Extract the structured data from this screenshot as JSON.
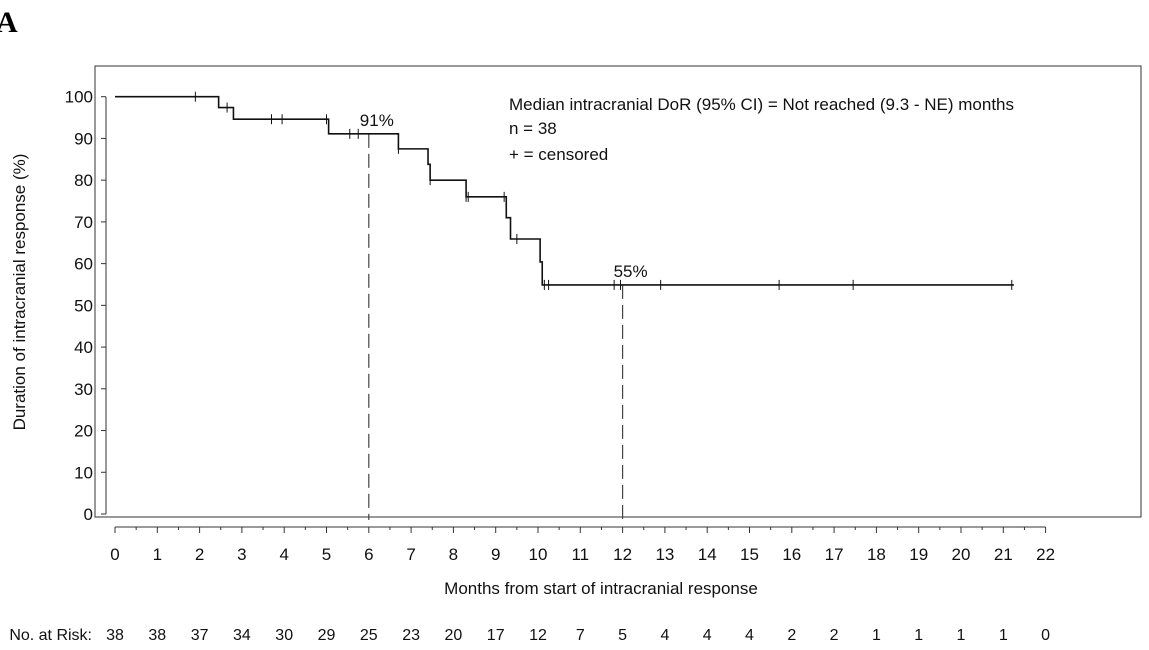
{
  "panel_label": "A",
  "chart_data": {
    "type": "line",
    "title": "",
    "xlabel": "Months from start of intracranial response",
    "ylabel": "Duration of intracranial response (%)",
    "xlim": [
      0,
      22
    ],
    "ylim": [
      0,
      100
    ],
    "x_ticks": [
      0,
      1,
      2,
      3,
      4,
      5,
      6,
      7,
      8,
      9,
      10,
      11,
      12,
      13,
      14,
      15,
      16,
      17,
      18,
      19,
      20,
      21,
      22
    ],
    "y_ticks": [
      0,
      10,
      20,
      30,
      40,
      50,
      60,
      70,
      80,
      90,
      100
    ],
    "grid": false,
    "series": [
      {
        "km_steps": [
          {
            "x": 0,
            "y": 100
          },
          {
            "x": 2.45,
            "y": 97.4
          },
          {
            "x": 2.8,
            "y": 94.6
          },
          {
            "x": 5.05,
            "y": 91.1
          },
          {
            "x": 6.7,
            "y": 87.5
          },
          {
            "x": 7.4,
            "y": 83.8
          },
          {
            "x": 7.45,
            "y": 80.0
          },
          {
            "x": 8.3,
            "y": 76.0
          },
          {
            "x": 9.25,
            "y": 71.0
          },
          {
            "x": 9.35,
            "y": 65.9
          },
          {
            "x": 10.05,
            "y": 60.4
          },
          {
            "x": 10.1,
            "y": 54.9
          }
        ],
        "end_x": 21.25,
        "censored": [
          {
            "x": 1.9,
            "y": 100
          },
          {
            "x": 2.65,
            "y": 97.4
          },
          {
            "x": 3.7,
            "y": 94.6
          },
          {
            "x": 3.95,
            "y": 94.6
          },
          {
            "x": 5.0,
            "y": 94.6
          },
          {
            "x": 5.55,
            "y": 91.1
          },
          {
            "x": 5.75,
            "y": 91.1
          },
          {
            "x": 6.7,
            "y": 87.5
          },
          {
            "x": 7.45,
            "y": 80.0
          },
          {
            "x": 8.3,
            "y": 76.0
          },
          {
            "x": 8.35,
            "y": 76.0
          },
          {
            "x": 9.2,
            "y": 76.0
          },
          {
            "x": 9.5,
            "y": 65.9
          },
          {
            "x": 10.15,
            "y": 54.9
          },
          {
            "x": 10.25,
            "y": 54.9
          },
          {
            "x": 11.8,
            "y": 54.9
          },
          {
            "x": 11.95,
            "y": 54.9
          },
          {
            "x": 12.9,
            "y": 54.9
          },
          {
            "x": 15.7,
            "y": 54.9
          },
          {
            "x": 17.45,
            "y": 54.9
          },
          {
            "x": 21.2,
            "y": 54.9
          }
        ]
      }
    ],
    "reference_lines": [
      {
        "x": 6,
        "y": 91.1,
        "label": "91%"
      },
      {
        "x": 12,
        "y": 54.9,
        "label": "55%"
      }
    ],
    "annotations": [
      "Median intracranial DoR (95% CI) = Not reached (9.3 - NE) months",
      "n = 38",
      "+ = censored"
    ],
    "risk_table": {
      "label": "No. at Risk:",
      "values": [
        "38",
        "38",
        "37",
        "34",
        "30",
        "29",
        "25",
        "23",
        "20",
        "17",
        "12",
        "7",
        "5",
        "4",
        "4",
        "4",
        "2",
        "2",
        "1",
        "1",
        "1",
        "1",
        "0"
      ]
    }
  }
}
